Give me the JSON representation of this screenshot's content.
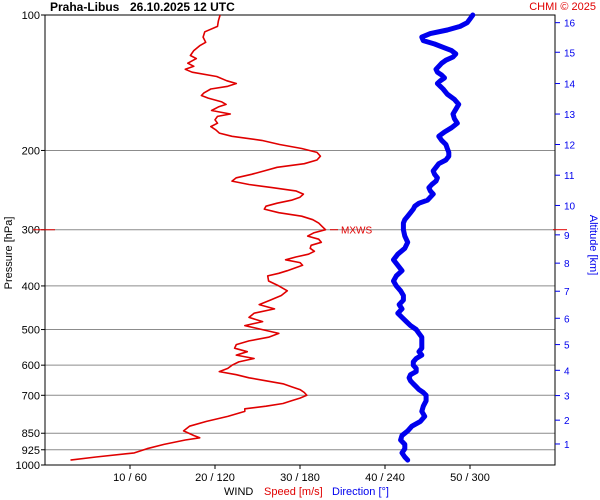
{
  "header": {
    "station": "Praha-Libus",
    "datetime": "26.10.2025 12 UTC",
    "credit": "CHMI © 2025"
  },
  "chart_data": {
    "type": "line",
    "y_left_label": "Pressure [hPa]",
    "y_right_label": "Altitude [km]",
    "x_label_main": "WIND",
    "x_label_speed": "Speed [m/s]",
    "x_label_direction": "Direction [°]",
    "pressure_ticks": [
      {
        "p": 100,
        "label": "100"
      },
      {
        "p": 200,
        "label": "200"
      },
      {
        "p": 300,
        "label": "300"
      },
      {
        "p": 400,
        "label": "400"
      },
      {
        "p": 500,
        "label": "500"
      },
      {
        "p": 600,
        "label": "600"
      },
      {
        "p": 700,
        "label": "700"
      },
      {
        "p": 850,
        "label": "850"
      },
      {
        "p": 925,
        "label": "925"
      },
      {
        "p": 1000,
        "label": "1000"
      }
    ],
    "pressure_range": [
      100,
      1000
    ],
    "altitude_ticks": [
      {
        "km": 1,
        "p": 898,
        "label": "1"
      },
      {
        "km": 2,
        "p": 795,
        "label": "2"
      },
      {
        "km": 3,
        "p": 701,
        "label": "3"
      },
      {
        "km": 4,
        "p": 616,
        "label": "4"
      },
      {
        "km": 5,
        "p": 540,
        "label": "5"
      },
      {
        "km": 6,
        "p": 472,
        "label": "6"
      },
      {
        "km": 7,
        "p": 411,
        "label": "7"
      },
      {
        "km": 8,
        "p": 356,
        "label": "8"
      },
      {
        "km": 9,
        "p": 308,
        "label": "9"
      },
      {
        "km": 10,
        "p": 265,
        "label": "10"
      },
      {
        "km": 11,
        "p": 227,
        "label": "11"
      },
      {
        "km": 12,
        "p": 194,
        "label": "12"
      },
      {
        "km": 13,
        "p": 166,
        "label": "13"
      },
      {
        "km": 14,
        "p": 142,
        "label": "14"
      },
      {
        "km": 15,
        "p": 121,
        "label": "15"
      },
      {
        "km": 16,
        "p": 104,
        "label": "16"
      }
    ],
    "x_ticks": [
      {
        "speed": 10,
        "direction": 60,
        "label": "10 / 60"
      },
      {
        "speed": 20,
        "direction": 120,
        "label": "20 / 120"
      },
      {
        "speed": 30,
        "direction": 180,
        "label": "30 / 180"
      },
      {
        "speed": 40,
        "direction": 240,
        "label": "40 / 240"
      },
      {
        "speed": 50,
        "direction": 300,
        "label": "50 / 300"
      }
    ],
    "speed_range": [
      0,
      60
    ],
    "direction_range": [
      0,
      360
    ],
    "max_wind_marker": {
      "label": "MXWS",
      "p": 300
    },
    "series": [
      {
        "name": "Speed [m/s]",
        "color": "#e00000",
        "points": [
          [
            100,
            20.6
          ],
          [
            103,
            20.4
          ],
          [
            106,
            20.3
          ],
          [
            109,
            18.8
          ],
          [
            112,
            18.6
          ],
          [
            115,
            18.9
          ],
          [
            117,
            18.2
          ],
          [
            120,
            17.5
          ],
          [
            123,
            17.1
          ],
          [
            125,
            17.8
          ],
          [
            128,
            16.8
          ],
          [
            130,
            17.5
          ],
          [
            132,
            16.5
          ],
          [
            134,
            17.3
          ],
          [
            137,
            20.2
          ],
          [
            140,
            21.4
          ],
          [
            142,
            22.5
          ],
          [
            144,
            21.5
          ],
          [
            146,
            19.5
          ],
          [
            149,
            18.7
          ],
          [
            151,
            18.4
          ],
          [
            153,
            19.2
          ],
          [
            156,
            20.8
          ],
          [
            158,
            21.3
          ],
          [
            160,
            20.4
          ],
          [
            163,
            19.6
          ],
          [
            166,
            21.8
          ],
          [
            168,
            20.3
          ],
          [
            171,
            20.0
          ],
          [
            174,
            20.3
          ],
          [
            177,
            19.5
          ],
          [
            180,
            20.1
          ],
          [
            183,
            20.5
          ],
          [
            186,
            22.0
          ],
          [
            190,
            25.5
          ],
          [
            194,
            27.6
          ],
          [
            198,
            30.2
          ],
          [
            202,
            32.0
          ],
          [
            206,
            32.4
          ],
          [
            210,
            32.0
          ],
          [
            214,
            30.5
          ],
          [
            218,
            27.3
          ],
          [
            222,
            25.8
          ],
          [
            226,
            24.3
          ],
          [
            230,
            22.5
          ],
          [
            234,
            22.0
          ],
          [
            238,
            24.0
          ],
          [
            242,
            26.8
          ],
          [
            246,
            29.5
          ],
          [
            250,
            30.4
          ],
          [
            254,
            30.0
          ],
          [
            258,
            29.0
          ],
          [
            262,
            27.3
          ],
          [
            266,
            26.0
          ],
          [
            270,
            25.8
          ],
          [
            275,
            27.5
          ],
          [
            280,
            30.2
          ],
          [
            285,
            31.5
          ],
          [
            290,
            32.2
          ],
          [
            295,
            32.6
          ],
          [
            300,
            33.0
          ],
          [
            305,
            31.6
          ],
          [
            310,
            30.9
          ],
          [
            315,
            32.2
          ],
          [
            320,
            32.5
          ],
          [
            325,
            31.3
          ],
          [
            330,
            31.2
          ],
          [
            335,
            31.7
          ],
          [
            340,
            31.0
          ],
          [
            345,
            29.5
          ],
          [
            350,
            28.3
          ],
          [
            355,
            30.0
          ],
          [
            360,
            30.3
          ],
          [
            365,
            29.4
          ],
          [
            370,
            28.5
          ],
          [
            375,
            27.5
          ],
          [
            380,
            26.2
          ],
          [
            390,
            26.3
          ],
          [
            400,
            27.5
          ],
          [
            410,
            28.5
          ],
          [
            420,
            27.8
          ],
          [
            430,
            26.5
          ],
          [
            440,
            25.2
          ],
          [
            450,
            27.0
          ],
          [
            460,
            24.6
          ],
          [
            470,
            24.0
          ],
          [
            480,
            25.6
          ],
          [
            490,
            23.5
          ],
          [
            500,
            25.5
          ],
          [
            510,
            27.5
          ],
          [
            520,
            26.3
          ],
          [
            530,
            24.0
          ],
          [
            540,
            22.5
          ],
          [
            550,
            22.3
          ],
          [
            560,
            23.8
          ],
          [
            570,
            22.5
          ],
          [
            580,
            24.6
          ],
          [
            590,
            22.8
          ],
          [
            600,
            22.0
          ],
          [
            610,
            21.5
          ],
          [
            620,
            20.5
          ],
          [
            630,
            22.5
          ],
          [
            640,
            24.0
          ],
          [
            650,
            26.0
          ],
          [
            660,
            28.0
          ],
          [
            670,
            29.0
          ],
          [
            680,
            30.0
          ],
          [
            690,
            30.5
          ],
          [
            700,
            30.8
          ],
          [
            710,
            30.0
          ],
          [
            720,
            29.0
          ],
          [
            730,
            28.0
          ],
          [
            740,
            26.0
          ],
          [
            750,
            23.5
          ],
          [
            760,
            23.5
          ],
          [
            780,
            21.5
          ],
          [
            800,
            19.0
          ],
          [
            820,
            17.0
          ],
          [
            840,
            16.3
          ],
          [
            860,
            17.5
          ],
          [
            870,
            18.2
          ],
          [
            880,
            16.5
          ],
          [
            900,
            14.0
          ],
          [
            920,
            12.0
          ],
          [
            940,
            10.5
          ],
          [
            960,
            6.0
          ],
          [
            975,
            3.0
          ]
        ]
      },
      {
        "name": "Direction [°]",
        "color": "#0000ee",
        "points": [
          [
            100,
            302
          ],
          [
            102,
            300
          ],
          [
            104,
            298
          ],
          [
            106,
            293
          ],
          [
            108,
            284
          ],
          [
            110,
            272
          ],
          [
            112,
            266
          ],
          [
            114,
            267
          ],
          [
            116,
            275
          ],
          [
            118,
            281
          ],
          [
            120,
            287
          ],
          [
            122,
            290
          ],
          [
            124,
            288
          ],
          [
            126,
            283
          ],
          [
            128,
            280
          ],
          [
            130,
            278
          ],
          [
            132,
            276
          ],
          [
            134,
            277
          ],
          [
            136,
            280
          ],
          [
            138,
            282
          ],
          [
            140,
            279
          ],
          [
            142,
            277
          ],
          [
            144,
            279
          ],
          [
            146,
            281
          ],
          [
            150,
            284
          ],
          [
            154,
            289
          ],
          [
            158,
            292
          ],
          [
            162,
            290
          ],
          [
            166,
            288
          ],
          [
            170,
            289
          ],
          [
            174,
            291
          ],
          [
            178,
            287
          ],
          [
            182,
            282
          ],
          [
            186,
            278
          ],
          [
            190,
            280
          ],
          [
            194,
            283
          ],
          [
            198,
            284
          ],
          [
            202,
            285
          ],
          [
            206,
            285
          ],
          [
            210,
            283
          ],
          [
            214,
            278
          ],
          [
            218,
            276
          ],
          [
            222,
            274
          ],
          [
            226,
            275
          ],
          [
            230,
            277
          ],
          [
            234,
            276
          ],
          [
            238,
            273
          ],
          [
            242,
            271
          ],
          [
            246,
            272
          ],
          [
            250,
            274
          ],
          [
            254,
            272
          ],
          [
            258,
            270
          ],
          [
            262,
            264
          ],
          [
            266,
            261
          ],
          [
            270,
            260
          ],
          [
            275,
            258
          ],
          [
            280,
            256
          ],
          [
            285,
            254
          ],
          [
            290,
            253
          ],
          [
            300,
            253
          ],
          [
            310,
            254
          ],
          [
            320,
            256
          ],
          [
            330,
            254
          ],
          [
            340,
            249
          ],
          [
            350,
            246
          ],
          [
            360,
            249
          ],
          [
            370,
            252
          ],
          [
            380,
            248
          ],
          [
            390,
            246
          ],
          [
            400,
            248
          ],
          [
            410,
            251
          ],
          [
            420,
            253
          ],
          [
            430,
            253
          ],
          [
            440,
            250
          ],
          [
            450,
            252
          ],
          [
            460,
            249
          ],
          [
            470,
            252
          ],
          [
            480,
            255
          ],
          [
            490,
            258
          ],
          [
            500,
            262
          ],
          [
            510,
            264
          ],
          [
            520,
            266
          ],
          [
            530,
            266
          ],
          [
            540,
            266
          ],
          [
            550,
            266
          ],
          [
            560,
            264
          ],
          [
            570,
            266
          ],
          [
            580,
            262
          ],
          [
            590,
            260
          ],
          [
            600,
            260
          ],
          [
            610,
            262
          ],
          [
            620,
            262
          ],
          [
            630,
            258
          ],
          [
            640,
            257
          ],
          [
            650,
            258
          ],
          [
            660,
            260
          ],
          [
            670,
            262
          ],
          [
            680,
            264
          ],
          [
            690,
            267
          ],
          [
            700,
            269
          ],
          [
            720,
            269
          ],
          [
            740,
            267
          ],
          [
            760,
            266
          ],
          [
            780,
            268
          ],
          [
            800,
            265
          ],
          [
            820,
            259
          ],
          [
            840,
            256
          ],
          [
            860,
            252
          ],
          [
            880,
            251
          ],
          [
            900,
            254
          ],
          [
            920,
            254
          ],
          [
            940,
            252
          ],
          [
            960,
            254
          ],
          [
            975,
            256
          ]
        ]
      }
    ]
  }
}
